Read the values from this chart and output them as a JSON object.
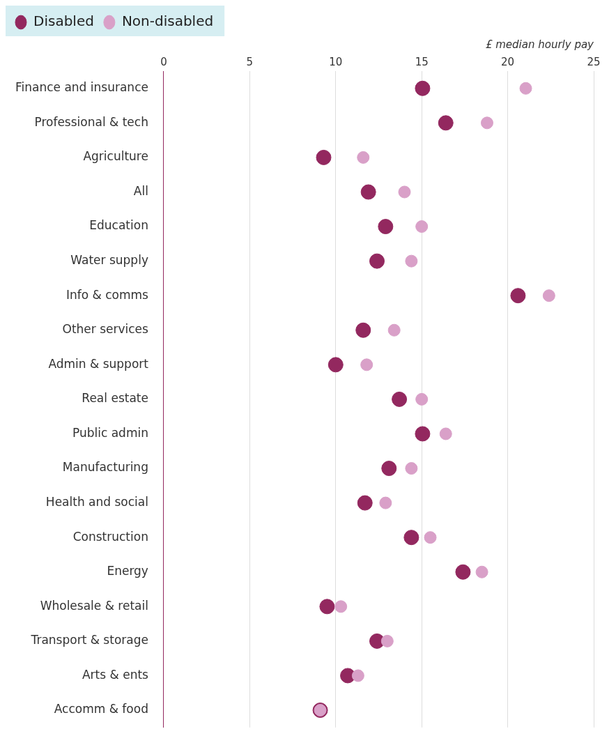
{
  "chart_data": {
    "type": "scatter",
    "xlabel": "£ median hourly pay",
    "categories": [
      "Finance and insurance",
      "Professional & tech",
      "Agriculture",
      "All",
      "Education",
      "Water supply",
      "Info & comms",
      "Other services",
      "Admin & support",
      "Real estate",
      "Public admin",
      "Manufacturing",
      "Health and social",
      "Construction",
      "Energy",
      "Wholesale & retail",
      "Transport & storage",
      "Arts & ents",
      "Accomm & food"
    ],
    "orientation": "horizontal",
    "xlim": [
      0,
      25
    ],
    "xticks": [
      0,
      5,
      10,
      15,
      20,
      25
    ],
    "grid": "x",
    "legend": "top left",
    "marker": "circle",
    "series": [
      {
        "name": "Disabled",
        "color": "#93285f",
        "values": [
          15.05,
          16.4,
          9.3,
          11.9,
          12.9,
          12.4,
          20.6,
          11.6,
          10.0,
          13.7,
          15.05,
          13.1,
          11.7,
          14.4,
          17.4,
          9.5,
          12.4,
          10.7,
          9.1
        ]
      },
      {
        "name": "Non-disabled",
        "color": "#d9a0c8",
        "values": [
          21.05,
          18.8,
          11.6,
          14.0,
          15.0,
          14.4,
          22.4,
          13.4,
          11.8,
          15.0,
          16.4,
          14.4,
          12.9,
          15.5,
          18.5,
          10.3,
          13.0,
          11.3,
          9.1
        ]
      }
    ]
  }
}
